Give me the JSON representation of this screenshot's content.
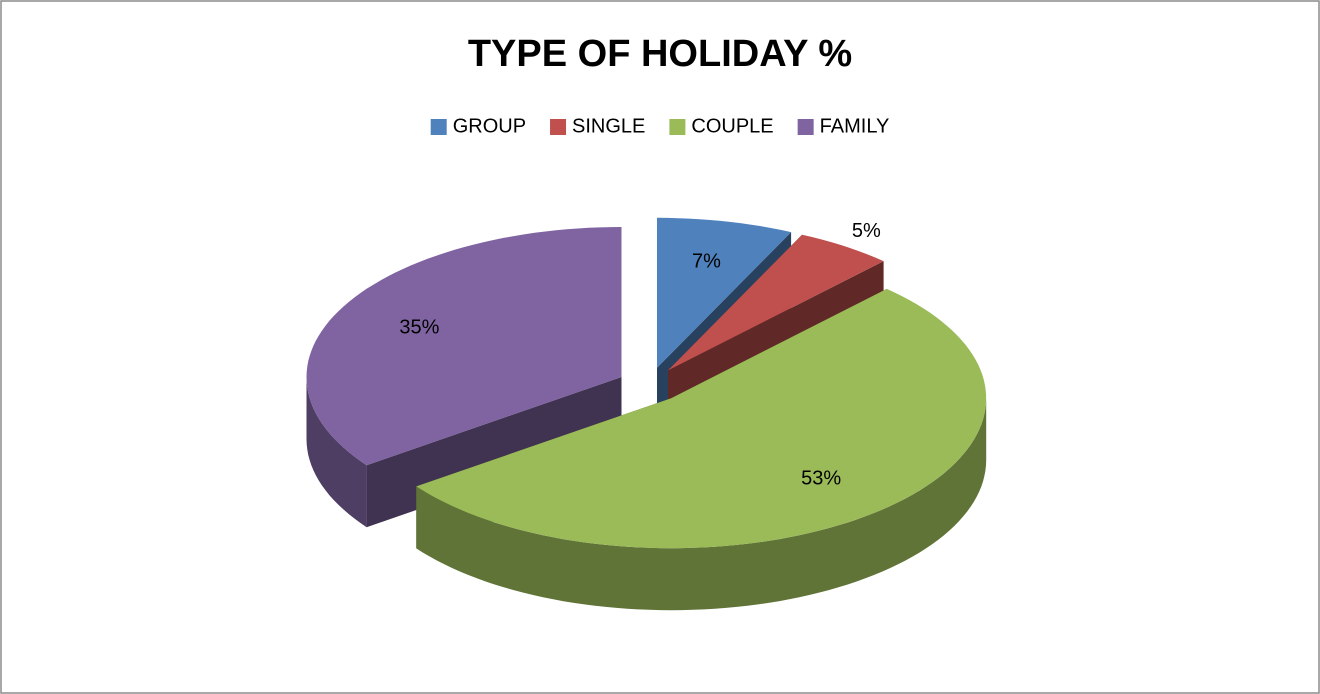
{
  "chart_data": {
    "type": "pie3d",
    "title": "TYPE OF HOLIDAY %",
    "categories": [
      "GROUP",
      "SINGLE",
      "COUPLE",
      "FAMILY"
    ],
    "values": [
      7,
      5,
      53,
      35
    ],
    "value_labels": [
      "7%",
      "5%",
      "53%",
      "35%"
    ],
    "colors": [
      "#4f81bd",
      "#c0504d",
      "#9bbb59",
      "#8064a2"
    ],
    "legend": "top"
  }
}
